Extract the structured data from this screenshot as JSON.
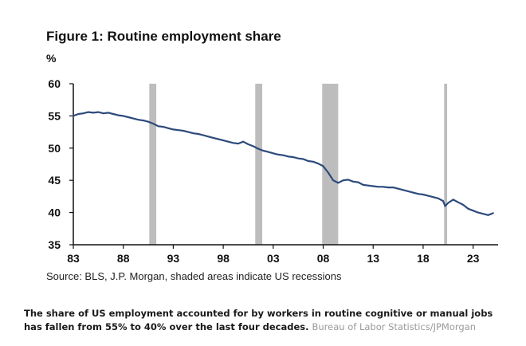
{
  "chart_data": {
    "type": "line",
    "title": "Figure 1: Routine employment share",
    "ylabel": "%",
    "xlabel": "",
    "xlim": [
      1983,
      2025.5
    ],
    "ylim": [
      35,
      60
    ],
    "grid": false,
    "y_ticks": [
      35,
      40,
      45,
      50,
      55,
      60
    ],
    "x_ticks": [
      {
        "value": 1983,
        "label": "83"
      },
      {
        "value": 1988,
        "label": "88"
      },
      {
        "value": 1993,
        "label": "93"
      },
      {
        "value": 1998,
        "label": "98"
      },
      {
        "value": 2003,
        "label": "03"
      },
      {
        "value": 2008,
        "label": "08"
      },
      {
        "value": 2013,
        "label": "13"
      },
      {
        "value": 2018,
        "label": "18"
      },
      {
        "value": 2023,
        "label": "23"
      }
    ],
    "recessions": [
      {
        "start": 1990.6,
        "end": 1991.3
      },
      {
        "start": 2001.2,
        "end": 2001.9
      },
      {
        "start": 2007.9,
        "end": 2009.5
      },
      {
        "start": 2020.1,
        "end": 2020.4
      }
    ],
    "series": [
      {
        "color": "#2d4a7c",
        "x": [
          1983.0,
          1983.5,
          1984.0,
          1984.5,
          1985.0,
          1985.5,
          1986.0,
          1986.5,
          1987.0,
          1987.5,
          1988.0,
          1988.5,
          1989.0,
          1989.5,
          1990.0,
          1990.5,
          1991.0,
          1991.5,
          1992.0,
          1992.5,
          1993.0,
          1993.5,
          1994.0,
          1994.5,
          1995.0,
          1995.5,
          1996.0,
          1996.5,
          1997.0,
          1997.5,
          1998.0,
          1998.5,
          1999.0,
          1999.5,
          2000.0,
          2000.5,
          2001.0,
          2001.5,
          2002.0,
          2002.5,
          2003.0,
          2003.5,
          2004.0,
          2004.5,
          2005.0,
          2005.5,
          2006.0,
          2006.5,
          2007.0,
          2007.5,
          2008.0,
          2008.5,
          2009.0,
          2009.5,
          2010.0,
          2010.5,
          2011.0,
          2011.5,
          2012.0,
          2012.5,
          2013.0,
          2013.5,
          2014.0,
          2014.5,
          2015.0,
          2015.5,
          2016.0,
          2016.5,
          2017.0,
          2017.5,
          2018.0,
          2018.5,
          2019.0,
          2019.5,
          2020.0,
          2020.2,
          2020.5,
          2021.0,
          2021.5,
          2022.0,
          2022.5,
          2023.0,
          2023.5,
          2024.0,
          2024.5,
          2025.0
        ],
        "y": [
          55.0,
          55.3,
          55.4,
          55.6,
          55.5,
          55.6,
          55.4,
          55.5,
          55.3,
          55.1,
          55.0,
          54.8,
          54.6,
          54.4,
          54.3,
          54.1,
          53.8,
          53.4,
          53.3,
          53.1,
          52.9,
          52.8,
          52.7,
          52.5,
          52.3,
          52.2,
          52.0,
          51.8,
          51.6,
          51.4,
          51.2,
          51.0,
          50.8,
          50.7,
          51.0,
          50.6,
          50.3,
          49.9,
          49.6,
          49.4,
          49.2,
          49.0,
          48.9,
          48.7,
          48.6,
          48.4,
          48.3,
          48.0,
          47.9,
          47.6,
          47.2,
          46.2,
          45.0,
          44.6,
          45.0,
          45.1,
          44.8,
          44.7,
          44.3,
          44.2,
          44.1,
          44.0,
          44.0,
          43.9,
          43.9,
          43.7,
          43.5,
          43.3,
          43.1,
          42.9,
          42.8,
          42.6,
          42.4,
          42.2,
          41.8,
          41.0,
          41.5,
          42.0,
          41.6,
          41.2,
          40.6,
          40.3,
          40.0,
          39.8,
          39.6,
          39.9
        ]
      }
    ]
  },
  "source_note": "Source: BLS, J.P. Morgan, shaded areas indicate US recessions",
  "caption": {
    "text": "The share of US employment accounted for by workers in routine cognitive or manual jobs has fallen from 55% to 40% over the last four decades.",
    "credit": "Bureau of Labor Statistics/JPMorgan"
  }
}
